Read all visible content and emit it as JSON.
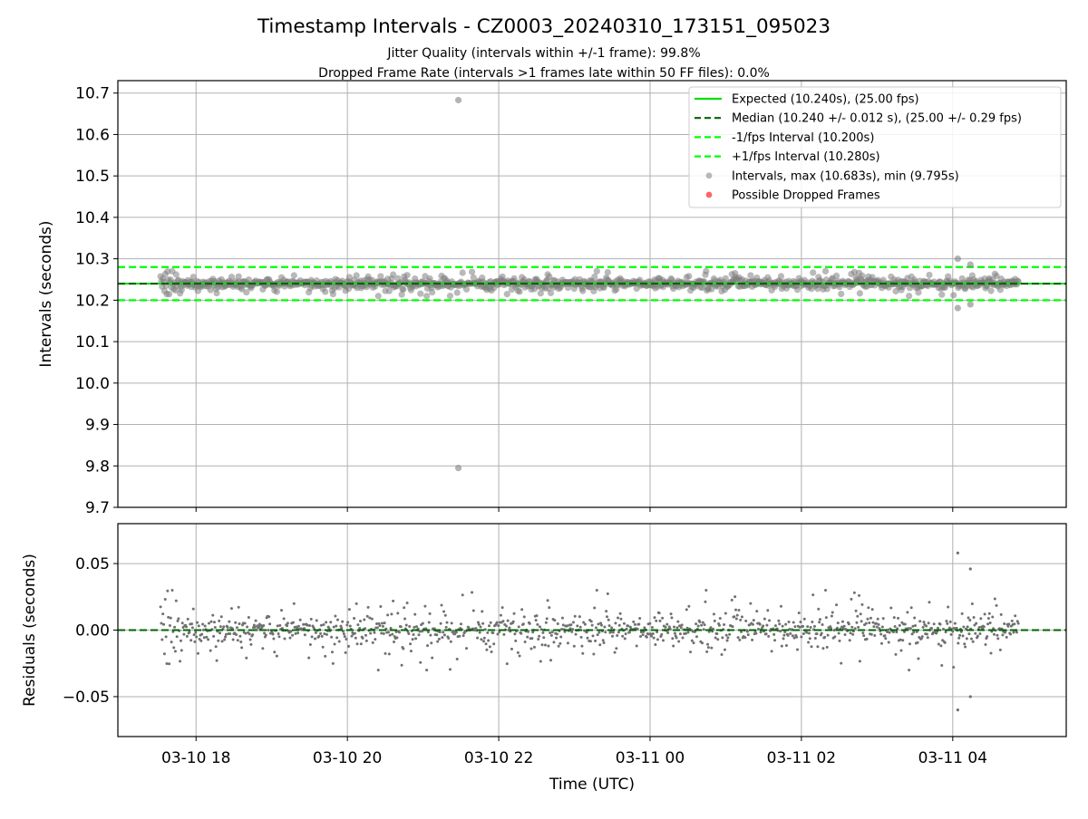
{
  "chart_data": {
    "type": "scatter",
    "title": "Timestamp Intervals - CZ0003_20240310_173151_095023",
    "subtitle_lines": [
      "Jitter Quality (intervals within +/-1 frame): 99.8%",
      "Dropped Frame Rate (intervals >1 frames late within 50 FF files): 0.0%"
    ],
    "xlabel": "Time (UTC)",
    "x_ticks": [
      {
        "value": "2024-03-10T18:00",
        "label": "03-10 18"
      },
      {
        "value": "2024-03-10T20:00",
        "label": "03-10 20"
      },
      {
        "value": "2024-03-10T22:00",
        "label": "03-10 22"
      },
      {
        "value": "2024-03-11T00:00",
        "label": "03-11 00"
      },
      {
        "value": "2024-03-11T02:00",
        "label": "03-11 02"
      },
      {
        "value": "2024-03-11T04:00",
        "label": "03-11 04"
      }
    ],
    "xlim": [
      "2024-03-10T16:58",
      "2024-03-11T05:30"
    ],
    "data_time_range": [
      "2024-03-10T17:31:51",
      "2024-03-11T04:52"
    ],
    "grid": true,
    "panels": [
      {
        "name": "intervals",
        "ylabel": "Intervals (seconds)",
        "ylim": [
          9.7,
          10.73
        ],
        "y_ticks": [
          "9.7",
          "9.8",
          "9.9",
          "10.0",
          "10.1",
          "10.2",
          "10.3",
          "10.4",
          "10.5",
          "10.6",
          "10.7"
        ],
        "legend_position": "top-right",
        "legend": [
          {
            "label": "Expected (10.240s), (25.00 fps)",
            "style": "solid-line",
            "color": "#00e000"
          },
          {
            "label": "Median (10.240 +/- 0.012 s), (25.00 +/- 0.29 fps)",
            "style": "dashed-line",
            "color": "#006400"
          },
          {
            "label": "-1/fps Interval (10.200s)",
            "style": "dashed-line",
            "color": "#00ff00"
          },
          {
            "label": "+1/fps Interval (10.280s)",
            "style": "dashed-line",
            "color": "#00ff00"
          },
          {
            "label": "Intervals, max (10.683s), min (9.795s)",
            "style": "marker",
            "color": "#808080"
          },
          {
            "label": "Possible Dropped Frames",
            "style": "marker",
            "color": "#ff0000"
          }
        ],
        "reference_lines": {
          "expected": 10.24,
          "median": 10.24,
          "minus_one_frame": 10.2,
          "plus_one_frame": 10.28
        },
        "typical_spread": 0.012,
        "outliers": [
          {
            "time": "2024-03-10T21:28",
            "value": 10.683
          },
          {
            "time": "2024-03-10T21:28",
            "value": 9.795
          },
          {
            "time": "2024-03-11T04:04",
            "value": 10.3
          },
          {
            "time": "2024-03-11T04:04",
            "value": 10.181
          },
          {
            "time": "2024-03-11T04:14",
            "value": 10.286
          },
          {
            "time": "2024-03-11T04:14",
            "value": 10.19
          }
        ]
      },
      {
        "name": "residuals",
        "ylabel": "Residuals (seconds)",
        "ylim": [
          -0.08,
          0.08
        ],
        "y_ticks": [
          "−0.05",
          "0.00",
          "0.05"
        ],
        "y_tick_values": [
          -0.05,
          0,
          0.05
        ],
        "zero_line": 0,
        "outliers": [
          {
            "time": "2024-03-11T04:04",
            "value": 0.058
          },
          {
            "time": "2024-03-11T04:04",
            "value": -0.06
          },
          {
            "time": "2024-03-11T04:14",
            "value": 0.046
          },
          {
            "time": "2024-03-11T04:14",
            "value": -0.05
          }
        ]
      }
    ],
    "colors": {
      "points": "#808080",
      "expected": "#00e000",
      "median": "#006400",
      "frame_bounds": "#00ff00",
      "dropped": "#ff0000",
      "grid": "#b0b0b0"
    }
  }
}
